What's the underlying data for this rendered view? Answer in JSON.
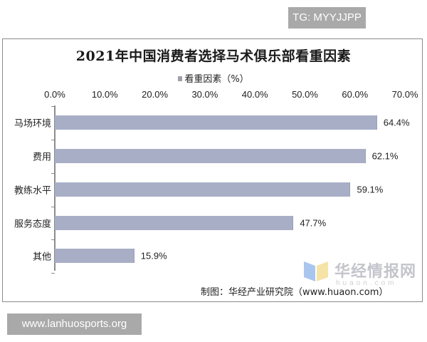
{
  "overlays": {
    "top_tag": "TG: MYYJJPP",
    "bottom_tag": "www.lanhuosports.org"
  },
  "chart": {
    "title": "2021年中国消费者选择马术俱乐部看重因素",
    "legend": "看重因素（%）",
    "source": "制图：华经产业研究院（www.huaon.com）",
    "watermark": {
      "name": "华经情报网",
      "sub": "huaon.com"
    },
    "colors": {
      "bar": "#a8aec6",
      "axis": "#8c8c8c"
    }
  },
  "chart_data": {
    "type": "bar",
    "orientation": "horizontal",
    "title": "2021年中国消费者选择马术俱乐部看重因素",
    "xlabel": "",
    "ylabel": "",
    "xlim": [
      0,
      70
    ],
    "x_ticks": [
      "0.0%",
      "10.0%",
      "20.0%",
      "30.0%",
      "40.0%",
      "50.0%",
      "60.0%",
      "70.0%"
    ],
    "x_axis_position": "top",
    "grid": false,
    "legend": [
      "看重因素（%）"
    ],
    "legend_position": "top",
    "categories": [
      "马场环境",
      "费用",
      "教练水平",
      "服务态度",
      "其他"
    ],
    "series": [
      {
        "name": "看重因素（%）",
        "values": [
          64.4,
          62.1,
          59.1,
          47.7,
          15.9
        ]
      }
    ],
    "value_labels": [
      "64.4%",
      "62.1%",
      "59.1%",
      "47.7%",
      "15.9%"
    ]
  }
}
